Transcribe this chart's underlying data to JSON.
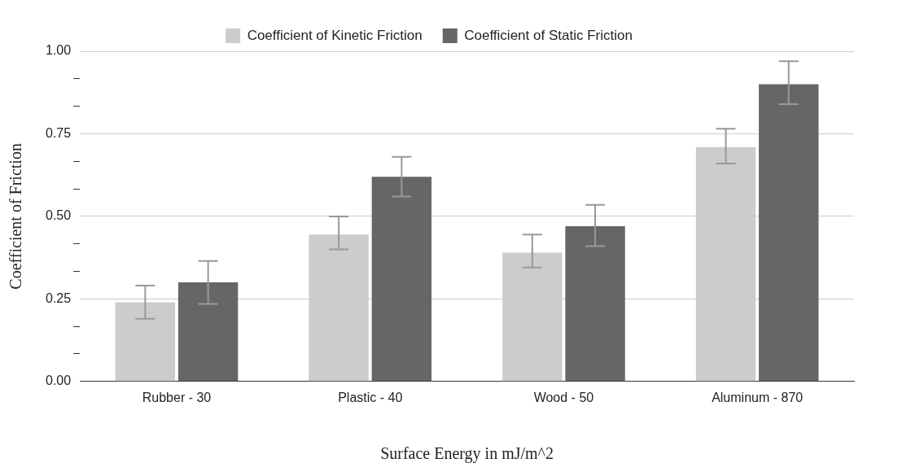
{
  "chart_data": {
    "type": "bar",
    "xlabel": "Surface Energy in mJ/m^2",
    "ylabel": "Coefficient of Friction",
    "categories": [
      "Rubber - 30",
      "Plastic - 40",
      "Wood - 50",
      "Aluminum - 870"
    ],
    "series": [
      {
        "name": "Coefficient of Kinetic Friction",
        "color": "#cccccc",
        "values": [
          0.24,
          0.445,
          0.39,
          0.71
        ],
        "errors": [
          [
            0.19,
            0.29
          ],
          [
            0.4,
            0.5
          ],
          [
            0.345,
            0.445
          ],
          [
            0.66,
            0.765
          ]
        ]
      },
      {
        "name": "Coefficient of Static Friction",
        "color": "#666666",
        "values": [
          0.3,
          0.62,
          0.47,
          0.9
        ],
        "errors": [
          [
            0.235,
            0.365
          ],
          [
            0.56,
            0.68
          ],
          [
            0.41,
            0.535
          ],
          [
            0.84,
            0.97
          ]
        ]
      }
    ],
    "ylim": [
      0,
      1
    ],
    "yticks": [
      "0.00",
      {
        "value": 0.0833,
        "label": null
      },
      {
        "value": 0.1667,
        "label": null
      },
      {
        "value": 0.25,
        "label": "0.25"
      },
      {
        "value": 0.3333,
        "label": null
      },
      {
        "value": 0.4167,
        "label": null
      },
      {
        "value": 0.5,
        "label": "0.50"
      },
      {
        "value": 0.5833,
        "label": null
      },
      {
        "value": 0.6667,
        "label": null
      },
      {
        "value": 0.75,
        "label": "0.75"
      },
      {
        "value": 0.8333,
        "label": null
      },
      {
        "value": 0.9167,
        "label": null
      },
      {
        "value": 1,
        "label": "1.00"
      }
    ],
    "grid": "y",
    "legend": "top"
  }
}
